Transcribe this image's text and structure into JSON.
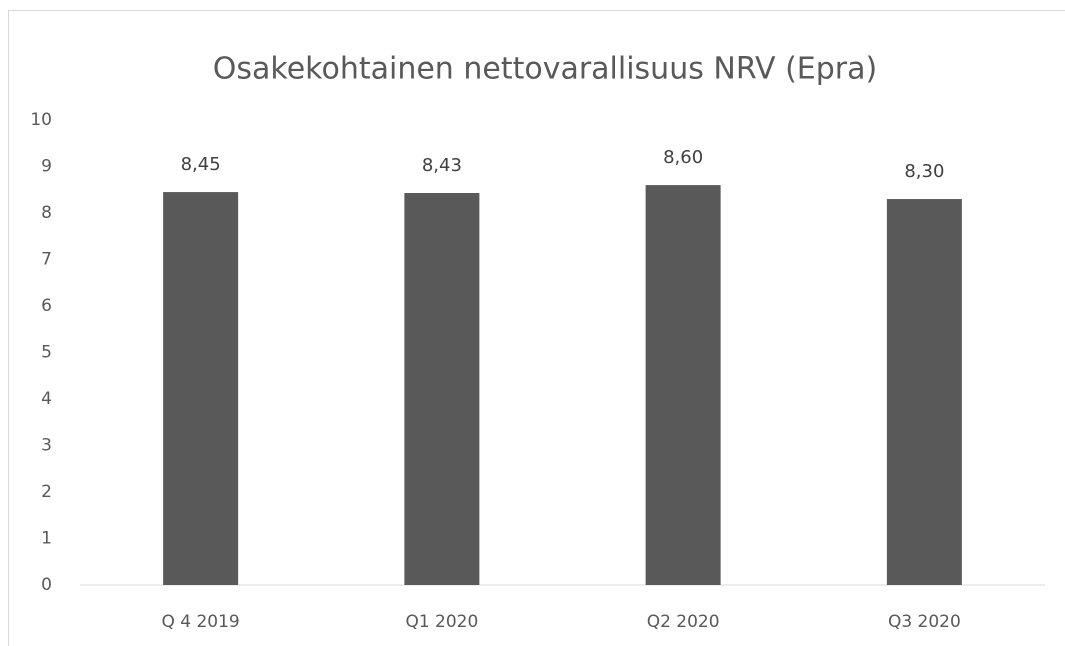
{
  "chart_data": {
    "type": "bar",
    "title": "Osakekohtainen nettovarallisuus NRV (Epra)",
    "categories": [
      "Q 4 2019",
      "Q1 2020",
      "Q2 2020",
      "Q3 2020"
    ],
    "values": [
      8.45,
      8.43,
      8.6,
      8.3
    ],
    "value_labels": [
      "8,45",
      "8,43",
      "8,60",
      "8,30"
    ],
    "color": "#595959",
    "ylim": [
      0,
      10
    ],
    "yticks": [
      0,
      1,
      2,
      3,
      4,
      5,
      6,
      7,
      8,
      9,
      10
    ],
    "grid": false
  }
}
